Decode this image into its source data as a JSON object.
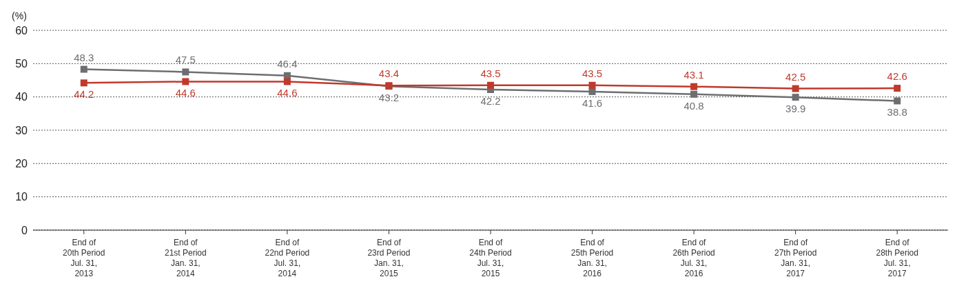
{
  "chart_data": {
    "type": "line",
    "ylabel": "(%)",
    "categories": [
      "End of\n20th Period\nJul. 31,\n2013",
      "End of\n21st Period\nJan. 31,\n2014",
      "End of\n22nd Period\nJul. 31,\n2014",
      "End of\n23rd Period\nJan. 31,\n2015",
      "End of\n24th Period\nJul. 31,\n2015",
      "End of\n25th Period\nJan. 31,\n2016",
      "End of\n26th Period\nJul. 31,\n2016",
      "End of\n27th Period\nJan. 31,\n2017",
      "End of\n28th Period\nJul. 31,\n2017"
    ],
    "series": [
      {
        "color": "#6d6e71",
        "values": [
          48.3,
          47.5,
          46.4,
          43.2,
          42.2,
          41.6,
          40.8,
          39.9,
          38.8
        ]
      },
      {
        "color": "#c0392b",
        "values": [
          44.2,
          44.6,
          44.6,
          43.4,
          43.5,
          43.5,
          43.1,
          42.5,
          42.6
        ]
      }
    ],
    "ylim": [
      0,
      60
    ],
    "yticks": [
      0,
      10,
      20,
      30,
      40,
      50,
      60
    ],
    "grid": "y",
    "marker": "square",
    "line_style": "solid",
    "data_labels": true
  }
}
